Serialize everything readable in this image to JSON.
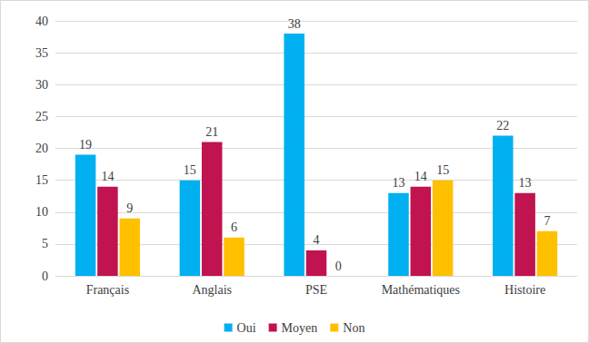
{
  "chart_data": {
    "type": "bar",
    "categories": [
      "Français",
      "Anglais",
      "PSE",
      "Mathématiques",
      "Histoire"
    ],
    "series": [
      {
        "name": "Oui",
        "color": "#00b0f0",
        "values": [
          19,
          15,
          38,
          13,
          22
        ]
      },
      {
        "name": "Moyen",
        "color": "#c0134f",
        "values": [
          14,
          21,
          4,
          14,
          13
        ]
      },
      {
        "name": "Non",
        "color": "#ffc000",
        "values": [
          9,
          6,
          0,
          15,
          7
        ]
      }
    ],
    "ylim": [
      0,
      40
    ],
    "yticks": [
      0,
      5,
      10,
      15,
      20,
      25,
      30,
      35,
      40
    ],
    "grid": true,
    "legend": "bottom",
    "data_labels": true
  }
}
